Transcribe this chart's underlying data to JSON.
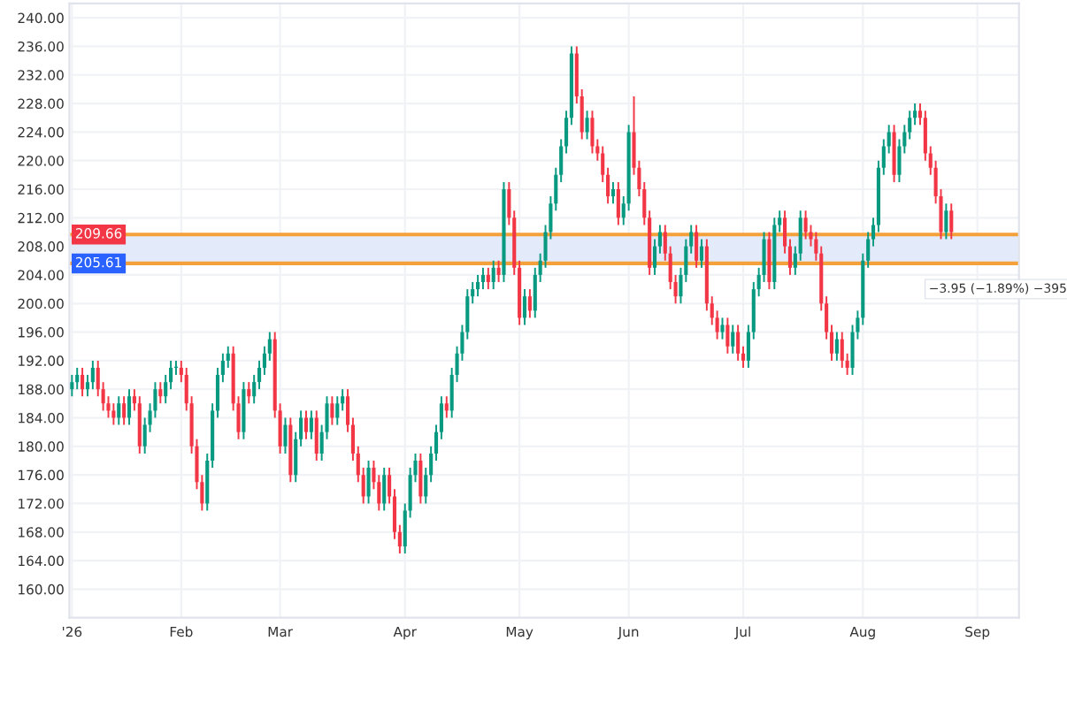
{
  "chart_data": {
    "type": "candlestick",
    "categories": [
      "'26",
      null,
      null,
      null,
      null,
      null,
      null,
      null,
      null,
      null,
      null,
      null,
      null,
      null,
      null,
      null,
      null,
      null,
      null,
      null,
      null,
      "Feb",
      null,
      null,
      null,
      null,
      null,
      null,
      null,
      null,
      null,
      null,
      null,
      null,
      null,
      null,
      null,
      null,
      null,
      null,
      "Mar",
      null,
      null,
      null,
      null,
      null,
      null,
      null,
      null,
      null,
      null,
      null,
      null,
      null,
      null,
      null,
      null,
      null,
      null,
      null,
      null,
      null,
      null,
      null,
      "Apr",
      null,
      null,
      null,
      null,
      null,
      null,
      null,
      null,
      null,
      null,
      null,
      null,
      null,
      null,
      null,
      null,
      null,
      null,
      null,
      null,
      null,
      "May",
      null,
      null,
      null,
      null,
      null,
      null,
      null,
      null,
      null,
      null,
      null,
      null,
      null,
      null,
      null,
      null,
      null,
      null,
      null,
      null,
      "Jun",
      null,
      null,
      null,
      null,
      null,
      null,
      null,
      null,
      null,
      null,
      null,
      null,
      null,
      null,
      null,
      null,
      null,
      null,
      null,
      null,
      null,
      "Jul",
      null,
      null,
      null,
      null,
      null,
      null,
      null,
      null,
      null,
      null,
      null,
      null,
      null,
      null,
      null,
      null,
      null,
      null,
      null,
      null,
      null,
      null,
      "Aug",
      null,
      null,
      null,
      null,
      null,
      null,
      null,
      null,
      null,
      null,
      null,
      null,
      null,
      null,
      null,
      null,
      null,
      null,
      null,
      null,
      null,
      "Sep"
    ],
    "ohlc": [
      [
        188,
        190,
        187,
        189
      ],
      [
        189,
        191,
        188,
        190
      ],
      [
        190,
        191,
        187,
        188
      ],
      [
        188,
        190,
        187,
        189
      ],
      [
        189,
        192,
        188,
        191
      ],
      [
        191,
        192,
        187,
        188
      ],
      [
        188,
        189,
        185,
        186
      ],
      [
        186,
        187,
        184,
        185
      ],
      [
        185,
        186,
        183,
        184
      ],
      [
        184,
        187,
        183,
        186
      ],
      [
        186,
        187,
        183,
        184
      ],
      [
        184,
        188,
        183,
        187
      ],
      [
        187,
        188,
        185,
        186
      ],
      [
        186,
        187,
        179,
        180
      ],
      [
        180,
        184,
        179,
        183
      ],
      [
        183,
        186,
        182,
        185
      ],
      [
        185,
        189,
        184,
        188
      ],
      [
        188,
        189,
        186,
        187
      ],
      [
        187,
        190,
        186,
        189
      ],
      [
        189,
        192,
        188,
        191
      ],
      [
        191,
        192,
        190,
        191
      ],
      [
        191,
        192,
        189,
        190
      ],
      [
        190,
        191,
        185,
        186
      ],
      [
        186,
        187,
        179,
        180
      ],
      [
        180,
        181,
        174,
        175
      ],
      [
        175,
        176,
        171,
        172
      ],
      [
        172,
        179,
        171,
        178
      ],
      [
        178,
        186,
        177,
        185
      ],
      [
        185,
        191,
        184,
        190
      ],
      [
        190,
        193,
        189,
        192
      ],
      [
        192,
        194,
        191,
        193
      ],
      [
        193,
        194,
        185,
        186
      ],
      [
        186,
        187,
        181,
        182
      ],
      [
        182,
        189,
        181,
        188
      ],
      [
        188,
        189,
        186,
        187
      ],
      [
        187,
        190,
        186,
        189
      ],
      [
        189,
        192,
        188,
        191
      ],
      [
        191,
        194,
        190,
        193
      ],
      [
        193,
        196,
        192,
        195
      ],
      [
        195,
        196,
        184,
        185
      ],
      [
        185,
        186,
        179,
        180
      ],
      [
        180,
        184,
        179,
        183
      ],
      [
        183,
        184,
        175,
        176
      ],
      [
        176,
        182,
        175,
        181
      ],
      [
        181,
        185,
        180,
        184
      ],
      [
        184,
        185,
        181,
        182
      ],
      [
        182,
        185,
        181,
        184
      ],
      [
        184,
        185,
        178,
        179
      ],
      [
        179,
        183,
        178,
        182
      ],
      [
        182,
        187,
        181,
        186
      ],
      [
        186,
        187,
        183,
        184
      ],
      [
        184,
        187,
        183,
        186
      ],
      [
        186,
        188,
        185,
        187
      ],
      [
        187,
        188,
        182,
        183
      ],
      [
        183,
        184,
        178,
        179
      ],
      [
        179,
        180,
        175,
        176
      ],
      [
        176,
        177,
        172,
        173
      ],
      [
        173,
        178,
        172,
        177
      ],
      [
        177,
        178,
        174,
        175
      ],
      [
        175,
        176,
        171,
        172
      ],
      [
        172,
        177,
        171,
        176
      ],
      [
        176,
        177,
        172,
        173
      ],
      [
        173,
        174,
        167,
        168
      ],
      [
        168,
        169,
        165,
        166
      ],
      [
        166,
        172,
        165,
        171
      ],
      [
        171,
        177,
        170,
        176
      ],
      [
        176,
        179,
        175,
        178
      ],
      [
        178,
        179,
        172,
        173
      ],
      [
        173,
        177,
        172,
        176
      ],
      [
        176,
        180,
        175,
        179
      ],
      [
        179,
        183,
        178,
        182
      ],
      [
        182,
        187,
        181,
        186
      ],
      [
        186,
        187,
        184,
        185
      ],
      [
        185,
        191,
        184,
        190
      ],
      [
        190,
        194,
        189,
        193
      ],
      [
        193,
        197,
        192,
        196
      ],
      [
        196,
        202,
        195,
        201
      ],
      [
        201,
        203,
        200,
        202
      ],
      [
        202,
        204,
        201,
        203
      ],
      [
        203,
        205,
        202,
        204
      ],
      [
        204,
        205,
        202,
        203
      ],
      [
        203,
        206,
        202,
        205
      ],
      [
        205,
        206,
        203,
        204
      ],
      [
        204,
        217,
        203,
        216
      ],
      [
        216,
        217,
        211,
        212
      ],
      [
        212,
        213,
        204,
        205
      ],
      [
        205,
        206,
        197,
        198
      ],
      [
        198,
        202,
        197,
        201
      ],
      [
        201,
        202,
        198,
        199
      ],
      [
        199,
        205,
        198,
        204
      ],
      [
        204,
        207,
        203,
        206
      ],
      [
        206,
        211,
        205,
        210
      ],
      [
        210,
        215,
        209,
        214
      ],
      [
        214,
        219,
        213,
        218
      ],
      [
        218,
        223,
        217,
        222
      ],
      [
        222,
        227,
        221,
        226
      ],
      [
        226,
        236,
        225,
        235
      ],
      [
        235,
        236,
        228,
        229
      ],
      [
        229,
        230,
        223,
        224
      ],
      [
        224,
        227,
        223,
        226
      ],
      [
        226,
        227,
        221,
        222
      ],
      [
        222,
        223,
        220,
        221
      ],
      [
        221,
        222,
        217,
        218
      ],
      [
        218,
        219,
        214,
        215
      ],
      [
        215,
        217,
        214,
        216
      ],
      [
        216,
        217,
        211,
        212
      ],
      [
        212,
        215,
        211,
        214
      ],
      [
        214,
        225,
        213,
        224
      ],
      [
        224,
        229,
        218,
        219
      ],
      [
        219,
        220,
        215,
        216
      ],
      [
        216,
        217,
        211,
        212
      ],
      [
        212,
        213,
        204,
        205
      ],
      [
        205,
        209,
        204,
        208
      ],
      [
        208,
        211,
        207,
        210
      ],
      [
        210,
        211,
        206,
        207
      ],
      [
        207,
        208,
        202,
        203
      ],
      [
        203,
        204,
        200,
        201
      ],
      [
        201,
        205,
        200,
        204
      ],
      [
        204,
        209,
        203,
        208
      ],
      [
        208,
        211,
        207,
        210
      ],
      [
        210,
        211,
        205,
        206
      ],
      [
        206,
        209,
        205,
        208
      ],
      [
        208,
        209,
        199,
        200
      ],
      [
        200,
        201,
        197,
        198
      ],
      [
        198,
        199,
        195,
        196
      ],
      [
        196,
        198,
        195,
        197
      ],
      [
        197,
        198,
        193,
        194
      ],
      [
        194,
        197,
        193,
        196
      ],
      [
        196,
        197,
        192,
        193
      ],
      [
        193,
        194,
        191,
        192
      ],
      [
        192,
        197,
        191,
        196
      ],
      [
        196,
        203,
        195,
        202
      ],
      [
        202,
        205,
        201,
        204
      ],
      [
        204,
        210,
        203,
        209
      ],
      [
        209,
        210,
        202,
        203
      ],
      [
        203,
        212,
        202,
        211
      ],
      [
        211,
        213,
        210,
        212
      ],
      [
        212,
        213,
        207,
        208
      ],
      [
        208,
        209,
        204,
        205
      ],
      [
        205,
        208,
        204,
        207
      ],
      [
        207,
        213,
        206,
        212
      ],
      [
        212,
        213,
        209,
        210
      ],
      [
        210,
        211,
        208,
        209
      ],
      [
        209,
        210,
        206,
        207
      ],
      [
        207,
        208,
        199,
        200
      ],
      [
        200,
        201,
        195,
        196
      ],
      [
        196,
        197,
        192,
        193
      ],
      [
        193,
        196,
        192,
        195
      ],
      [
        195,
        196,
        191,
        192
      ],
      [
        192,
        193,
        190,
        191
      ],
      [
        191,
        197,
        190,
        196
      ],
      [
        196,
        199,
        195,
        198
      ],
      [
        198,
        207,
        197,
        206
      ],
      [
        206,
        210,
        205,
        209
      ],
      [
        209,
        212,
        208,
        211
      ],
      [
        211,
        220,
        210,
        219
      ],
      [
        219,
        223,
        218,
        222
      ],
      [
        222,
        225,
        221,
        224
      ],
      [
        224,
        225,
        217,
        218
      ],
      [
        218,
        223,
        217,
        222
      ],
      [
        222,
        225,
        221,
        224
      ],
      [
        224,
        227,
        223,
        226
      ],
      [
        226,
        228,
        225,
        227
      ],
      [
        227,
        228,
        225,
        226
      ],
      [
        226,
        227,
        220,
        221
      ],
      [
        221,
        222,
        218,
        219
      ],
      [
        219,
        220,
        214,
        215
      ],
      [
        215,
        216,
        209,
        210
      ],
      [
        210,
        214,
        209,
        213
      ],
      [
        213,
        214,
        209,
        210
      ],
      null,
      null,
      null,
      null,
      null
    ],
    "ylim": [
      156,
      242
    ],
    "yticks": [
      {
        "value": 160,
        "label": "160.00"
      },
      {
        "value": 164,
        "label": "164.00"
      },
      {
        "value": 168,
        "label": "168.00"
      },
      {
        "value": 172,
        "label": "172.00"
      },
      {
        "value": 176,
        "label": "176.00"
      },
      {
        "value": 180,
        "label": "180.00"
      },
      {
        "value": 184,
        "label": "184.00"
      },
      {
        "value": 188,
        "label": "188.00"
      },
      {
        "value": 192,
        "label": "192.00"
      },
      {
        "value": 196,
        "label": "196.00"
      },
      {
        "value": 200,
        "label": "200.00"
      },
      {
        "value": 204,
        "label": "204.00"
      },
      {
        "value": 208,
        "label": "208.00"
      },
      {
        "value": 212,
        "label": "212.00"
      },
      {
        "value": 216,
        "label": "216.00"
      },
      {
        "value": 220,
        "label": "220.00"
      },
      {
        "value": 224,
        "label": "224.00"
      },
      {
        "value": 228,
        "label": "228.00"
      },
      {
        "value": 232,
        "label": "232.00"
      },
      {
        "value": 236,
        "label": "236.00"
      },
      {
        "value": 240,
        "label": "240.00"
      }
    ],
    "bands": [
      {
        "axis": "y",
        "from": 205.61,
        "to": 209.66,
        "color": "#e3ebfb"
      }
    ],
    "ref_lines": [
      {
        "axis": "y",
        "value": 209.66,
        "label": "209.66",
        "color": "#f5a13b"
      },
      {
        "axis": "y",
        "value": 205.61,
        "label": "205.61",
        "color": "#f5a13b"
      }
    ],
    "annotations": [
      "−3.95 (−1.89%) −395"
    ],
    "grid": true,
    "legend": false
  }
}
